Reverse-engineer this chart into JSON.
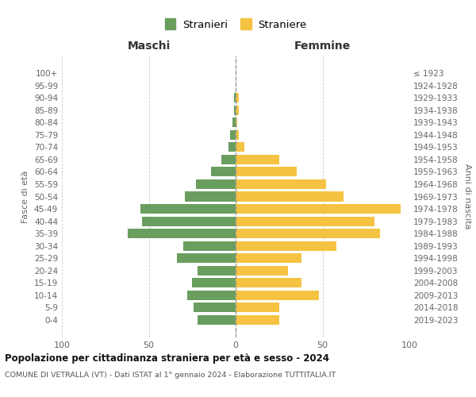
{
  "age_groups": [
    "0-4",
    "5-9",
    "10-14",
    "15-19",
    "20-24",
    "25-29",
    "30-34",
    "35-39",
    "40-44",
    "45-49",
    "50-54",
    "55-59",
    "60-64",
    "65-69",
    "70-74",
    "75-79",
    "80-84",
    "85-89",
    "90-94",
    "95-99",
    "100+"
  ],
  "birth_years": [
    "2019-2023",
    "2014-2018",
    "2009-2013",
    "2004-2008",
    "1999-2003",
    "1994-1998",
    "1989-1993",
    "1984-1988",
    "1979-1983",
    "1974-1978",
    "1969-1973",
    "1964-1968",
    "1959-1963",
    "1954-1958",
    "1949-1953",
    "1944-1948",
    "1939-1943",
    "1934-1938",
    "1929-1933",
    "1924-1928",
    "≤ 1923"
  ],
  "males": [
    22,
    24,
    28,
    25,
    22,
    34,
    30,
    62,
    54,
    55,
    29,
    23,
    14,
    8,
    4,
    3,
    2,
    1,
    1,
    0,
    0
  ],
  "females": [
    25,
    25,
    48,
    38,
    30,
    38,
    58,
    83,
    80,
    95,
    62,
    52,
    35,
    25,
    5,
    2,
    1,
    2,
    2,
    0,
    0
  ],
  "male_color": "#6a9e5e",
  "female_color": "#f5c242",
  "dashed_line_color": "#999999",
  "grid_color": "#cccccc",
  "background_color": "#ffffff",
  "title": "Popolazione per cittadinanza straniera per età e sesso - 2024",
  "subtitle": "COMUNE DI VETRALLA (VT) - Dati ISTAT al 1° gennaio 2024 - Elaborazione TUTTITALIA.IT",
  "xlabel_left": "Maschi",
  "xlabel_right": "Femmine",
  "ylabel_left": "Fasce di età",
  "ylabel_right": "Anni di nascita",
  "legend_male": "Stranieri",
  "legend_female": "Straniere",
  "xlim": 100
}
